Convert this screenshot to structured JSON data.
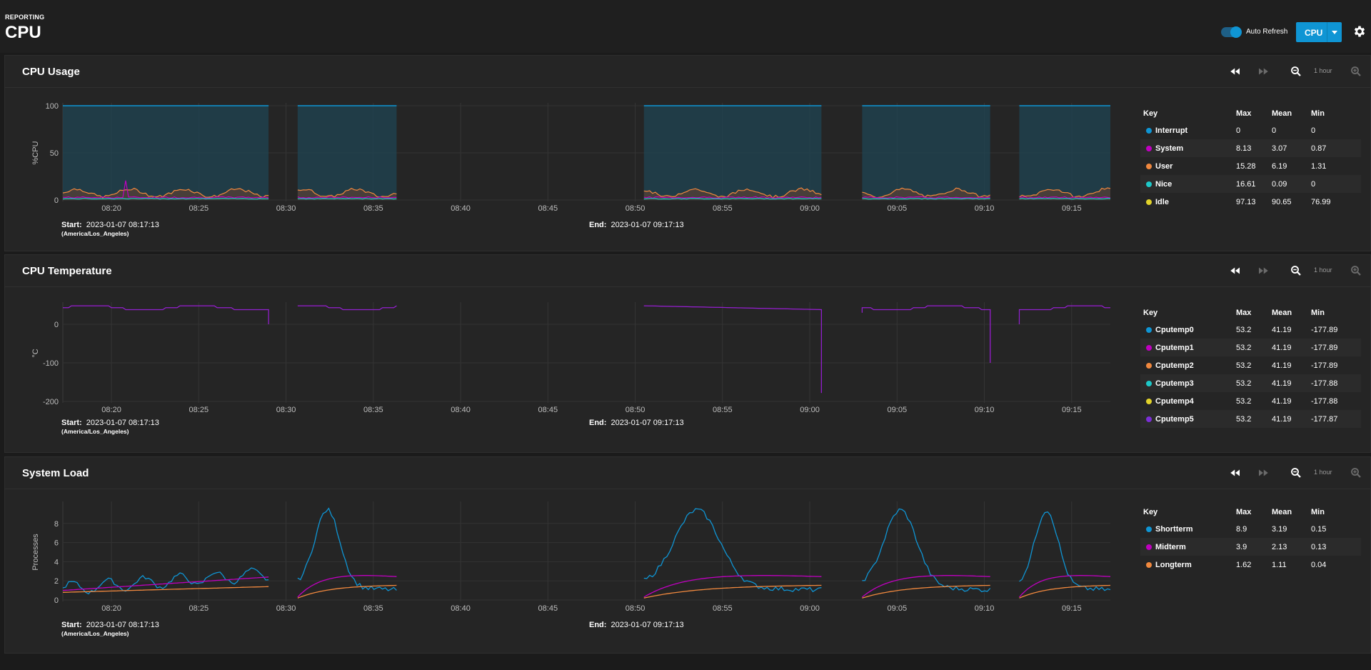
{
  "header": {
    "breadcrumb": "REPORTING",
    "title": "CPU",
    "auto_refresh_label": "Auto Refresh",
    "auto_refresh_on": true,
    "report_select": "CPU"
  },
  "controls": {
    "range_label": "1 hour"
  },
  "x_ticks": [
    "08:20",
    "08:25",
    "08:30",
    "08:35",
    "08:40",
    "08:45",
    "08:50",
    "08:55",
    "09:00",
    "09:05",
    "09:10",
    "09:15"
  ],
  "time_meta": {
    "start_label": "Start:",
    "start_value": "2023-01-07 08:17:13",
    "timezone": "(America/Los_Angeles)",
    "end_label": "End:",
    "end_value": "2023-01-07 09:17:13"
  },
  "colors": {
    "interrupt": "#0f95d4",
    "system": "#c000c0",
    "user": "#f0883e",
    "nice": "#1ec8c8",
    "idle": "#e2d32a",
    "cputemp5": "#7b2fd6"
  },
  "legend_headers": {
    "key": "Key",
    "max": "Max",
    "mean": "Mean",
    "min": "Min"
  },
  "chart_data": [
    {
      "type": "area",
      "title": "CPU Usage",
      "ylabel": "%CPU",
      "ylim": [
        0,
        100
      ],
      "yticks": [
        "100",
        "50",
        "0"
      ],
      "x_range": [
        "08:17:13",
        "09:17:13"
      ],
      "gaps": [
        [
          "08:29",
          "08:30:40"
        ],
        [
          "08:36",
          "08:50:30"
        ],
        [
          "09:00:40",
          "09:03"
        ],
        [
          "09:10",
          "09:12"
        ]
      ],
      "series": [
        {
          "name": "Interrupt",
          "max": "0",
          "mean": "0",
          "min": "0",
          "color": "#0f95d4"
        },
        {
          "name": "System",
          "max": "8.13",
          "mean": "3.07",
          "min": "0.87",
          "color": "#c000c0"
        },
        {
          "name": "User",
          "max": "15.28",
          "mean": "6.19",
          "min": "1.31",
          "color": "#f0883e"
        },
        {
          "name": "Nice",
          "max": "16.61",
          "mean": "0.09",
          "min": "0",
          "color": "#1ec8c8"
        },
        {
          "name": "Idle",
          "max": "97.13",
          "mean": "90.65",
          "min": "76.99",
          "color": "#e2d32a"
        }
      ]
    },
    {
      "type": "line",
      "title": "CPU Temperature",
      "ylabel": "°C",
      "ylim": [
        -200,
        50
      ],
      "yticks": [
        "0",
        "-100",
        "-200"
      ],
      "x_range": [
        "08:17:13",
        "09:17:13"
      ],
      "series": [
        {
          "name": "Cputemp0",
          "max": "53.2",
          "mean": "41.19",
          "min": "-177.89",
          "color": "#0f95d4"
        },
        {
          "name": "Cputemp1",
          "max": "53.2",
          "mean": "41.19",
          "min": "-177.89",
          "color": "#c000c0"
        },
        {
          "name": "Cputemp2",
          "max": "53.2",
          "mean": "41.19",
          "min": "-177.89",
          "color": "#f0883e"
        },
        {
          "name": "Cputemp3",
          "max": "53.2",
          "mean": "41.19",
          "min": "-177.88",
          "color": "#1ec8c8"
        },
        {
          "name": "Cputemp4",
          "max": "53.2",
          "mean": "41.19",
          "min": "-177.88",
          "color": "#e2d32a"
        },
        {
          "name": "Cputemp5",
          "max": "53.2",
          "mean": "41.19",
          "min": "-177.87",
          "color": "#7b2fd6"
        }
      ]
    },
    {
      "type": "line",
      "title": "System Load",
      "ylabel": "Processes",
      "ylim": [
        0,
        10
      ],
      "yticks": [
        "8",
        "6",
        "4",
        "2",
        "0"
      ],
      "x_range": [
        "08:17:13",
        "09:17:13"
      ],
      "series": [
        {
          "name": "Shortterm",
          "max": "8.9",
          "mean": "3.19",
          "min": "0.15",
          "color": "#0f95d4"
        },
        {
          "name": "Midterm",
          "max": "3.9",
          "mean": "2.13",
          "min": "0.13",
          "color": "#c000c0"
        },
        {
          "name": "Longterm",
          "max": "1.62",
          "mean": "1.11",
          "min": "0.04",
          "color": "#f0883e"
        }
      ]
    }
  ]
}
